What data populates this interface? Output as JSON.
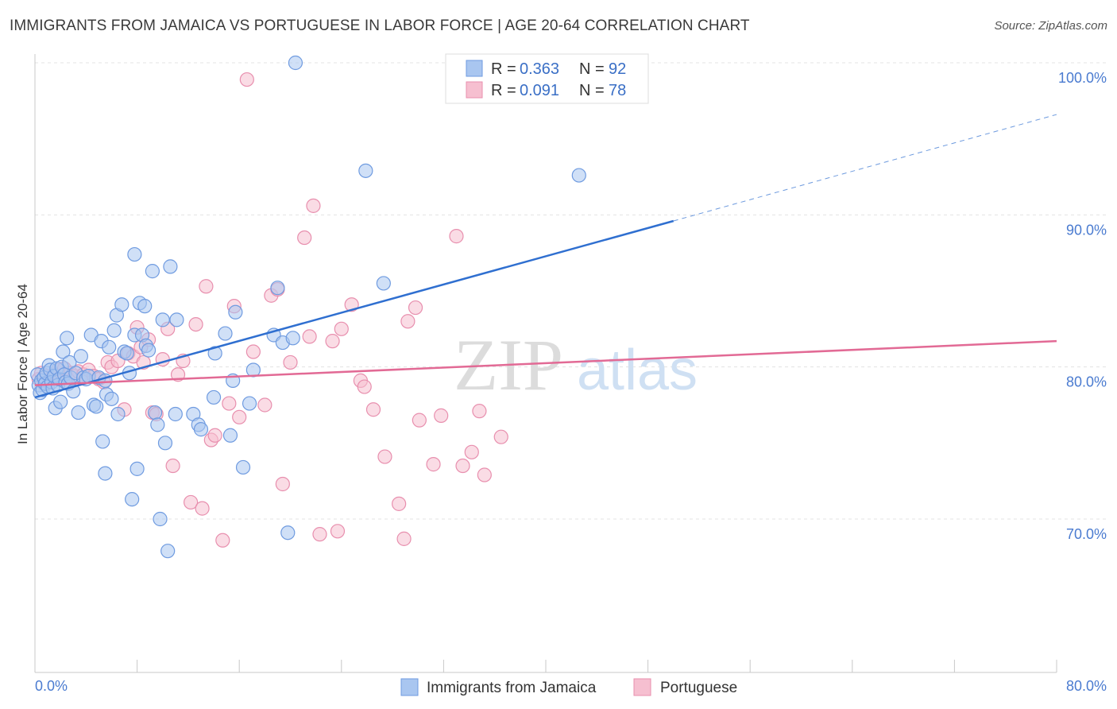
{
  "title": "IMMIGRANTS FROM JAMAICA VS PORTUGUESE IN LABOR FORCE | AGE 20-64 CORRELATION CHART",
  "source": "Source: ZipAtlas.com",
  "watermark": {
    "zip": "ZIP",
    "atlas": "atlas"
  },
  "legend": {
    "r_label": "R =",
    "n_label": "N =",
    "rows": [
      {
        "r": "0.363",
        "n": "92"
      },
      {
        "r": "0.091",
        "n": "78"
      }
    ]
  },
  "colors": {
    "jamaica_fill": "#a9c6f0",
    "jamaica_stroke": "#6f9be0",
    "jamaica_line": "#2f6fd0",
    "portuguese_fill": "#f6bfd0",
    "portuguese_stroke": "#e88fae",
    "portuguese_line": "#e26a95"
  },
  "chart_data": {
    "type": "scatter",
    "title": "IMMIGRANTS FROM JAMAICA VS PORTUGUESE IN LABOR FORCE | AGE 20-64 CORRELATION CHART",
    "xlabel": "",
    "ylabel": "In Labor Force | Age 20-64",
    "xlim": [
      0,
      80
    ],
    "ylim": [
      60,
      101
    ],
    "x_tick_labels": [
      "0.0%",
      "80.0%"
    ],
    "y_ticks": [
      70,
      80,
      90,
      100
    ],
    "y_tick_labels": [
      "70.0%",
      "80.0%",
      "90.0%",
      "100.0%"
    ],
    "series": [
      {
        "name": "Immigrants from Jamaica",
        "r": 0.363,
        "n": 92,
        "trend": {
          "x0": 0,
          "y0": 78.0,
          "x1": 50,
          "y1": 89.6,
          "dash_to_x": 80,
          "dash_to_y": 96.6
        },
        "points": [
          [
            0.2,
            79.5
          ],
          [
            0.3,
            78.8
          ],
          [
            0.4,
            78.3
          ],
          [
            0.5,
            79.1
          ],
          [
            0.6,
            78.5
          ],
          [
            0.7,
            79.3
          ],
          [
            0.8,
            78.9
          ],
          [
            0.9,
            79.6
          ],
          [
            1.0,
            78.7
          ],
          [
            1.1,
            80.1
          ],
          [
            1.2,
            79.8
          ],
          [
            1.3,
            79.0
          ],
          [
            1.4,
            78.6
          ],
          [
            1.5,
            79.4
          ],
          [
            1.6,
            77.3
          ],
          [
            1.7,
            79.9
          ],
          [
            1.8,
            78.8
          ],
          [
            1.9,
            79.2
          ],
          [
            2.0,
            77.7
          ],
          [
            2.1,
            80.0
          ],
          [
            2.2,
            81.0
          ],
          [
            2.3,
            79.5
          ],
          [
            2.4,
            79.0
          ],
          [
            2.5,
            81.9
          ],
          [
            2.6,
            78.9
          ],
          [
            2.7,
            80.3
          ],
          [
            2.8,
            79.3
          ],
          [
            3.0,
            78.4
          ],
          [
            3.2,
            79.6
          ],
          [
            3.4,
            77.0
          ],
          [
            3.6,
            80.7
          ],
          [
            3.8,
            79.3
          ],
          [
            4.0,
            79.2
          ],
          [
            4.2,
            79.4
          ],
          [
            4.4,
            82.1
          ],
          [
            4.6,
            77.5
          ],
          [
            4.8,
            77.4
          ],
          [
            5.0,
            79.3
          ],
          [
            5.2,
            81.7
          ],
          [
            5.5,
            79.1
          ],
          [
            5.3,
            75.1
          ],
          [
            5.5,
            73.0
          ],
          [
            5.6,
            78.2
          ],
          [
            5.8,
            81.3
          ],
          [
            6.0,
            77.9
          ],
          [
            6.2,
            82.4
          ],
          [
            6.4,
            83.4
          ],
          [
            6.5,
            76.9
          ],
          [
            6.8,
            84.1
          ],
          [
            7.0,
            81.0
          ],
          [
            7.2,
            80.9
          ],
          [
            7.4,
            79.6
          ],
          [
            7.6,
            71.3
          ],
          [
            7.8,
            82.1
          ],
          [
            7.8,
            87.4
          ],
          [
            8.0,
            73.3
          ],
          [
            8.2,
            84.2
          ],
          [
            8.4,
            82.1
          ],
          [
            8.6,
            84.0
          ],
          [
            8.7,
            81.4
          ],
          [
            8.9,
            81.1
          ],
          [
            9.2,
            86.3
          ],
          [
            9.4,
            77.0
          ],
          [
            9.6,
            76.2
          ],
          [
            9.8,
            70.0
          ],
          [
            10.0,
            83.1
          ],
          [
            10.2,
            75.0
          ],
          [
            10.4,
            67.9
          ],
          [
            10.6,
            86.6
          ],
          [
            11.0,
            76.9
          ],
          [
            11.1,
            83.1
          ],
          [
            12.4,
            76.9
          ],
          [
            12.8,
            76.2
          ],
          [
            13.0,
            75.9
          ],
          [
            14.0,
            78.0
          ],
          [
            14.1,
            80.9
          ],
          [
            14.9,
            82.2
          ],
          [
            15.3,
            75.5
          ],
          [
            15.5,
            79.1
          ],
          [
            15.7,
            83.6
          ],
          [
            16.3,
            73.4
          ],
          [
            16.8,
            77.6
          ],
          [
            17.1,
            79.8
          ],
          [
            18.7,
            82.1
          ],
          [
            19.0,
            85.2
          ],
          [
            19.4,
            81.6
          ],
          [
            19.8,
            69.1
          ],
          [
            20.2,
            81.9
          ],
          [
            20.4,
            100.0
          ],
          [
            25.9,
            92.9
          ],
          [
            27.3,
            85.5
          ],
          [
            42.6,
            92.6
          ]
        ]
      },
      {
        "name": "Portuguese",
        "r": 0.091,
        "n": 78,
        "trend": {
          "x0": 0,
          "y0": 78.8,
          "x1": 80,
          "y1": 81.7
        },
        "points": [
          [
            0.3,
            79.2
          ],
          [
            0.5,
            79.6
          ],
          [
            0.7,
            78.9
          ],
          [
            0.9,
            79.4
          ],
          [
            1.1,
            79.0
          ],
          [
            1.3,
            79.3
          ],
          [
            1.5,
            79.5
          ],
          [
            1.8,
            79.8
          ],
          [
            2.0,
            79.2
          ],
          [
            2.3,
            79.9
          ],
          [
            2.5,
            79.0
          ],
          [
            2.8,
            79.6
          ],
          [
            3.1,
            79.4
          ],
          [
            3.4,
            79.7
          ],
          [
            3.8,
            79.5
          ],
          [
            4.2,
            79.8
          ],
          [
            4.6,
            79.4
          ],
          [
            5.0,
            79.2
          ],
          [
            5.4,
            79.0
          ],
          [
            5.7,
            80.3
          ],
          [
            6.0,
            80.0
          ],
          [
            6.5,
            80.4
          ],
          [
            7.0,
            77.2
          ],
          [
            7.3,
            80.9
          ],
          [
            7.7,
            80.7
          ],
          [
            8.0,
            82.6
          ],
          [
            8.3,
            81.3
          ],
          [
            8.5,
            80.3
          ],
          [
            8.9,
            81.8
          ],
          [
            9.2,
            77.0
          ],
          [
            9.5,
            76.9
          ],
          [
            10.0,
            80.5
          ],
          [
            10.4,
            82.5
          ],
          [
            10.8,
            73.5
          ],
          [
            11.2,
            79.5
          ],
          [
            11.6,
            80.4
          ],
          [
            12.2,
            71.1
          ],
          [
            12.6,
            82.8
          ],
          [
            13.1,
            70.7
          ],
          [
            13.4,
            85.3
          ],
          [
            13.8,
            75.2
          ],
          [
            14.1,
            75.5
          ],
          [
            14.7,
            68.6
          ],
          [
            15.2,
            77.6
          ],
          [
            15.6,
            84.0
          ],
          [
            16.0,
            76.7
          ],
          [
            16.6,
            98.9
          ],
          [
            17.1,
            81.0
          ],
          [
            18.0,
            77.5
          ],
          [
            18.5,
            84.7
          ],
          [
            19.0,
            85.1
          ],
          [
            19.4,
            72.3
          ],
          [
            20.0,
            80.3
          ],
          [
            21.1,
            88.5
          ],
          [
            21.5,
            82.0
          ],
          [
            21.8,
            90.6
          ],
          [
            22.3,
            69.0
          ],
          [
            23.3,
            81.7
          ],
          [
            23.7,
            69.2
          ],
          [
            24.0,
            82.5
          ],
          [
            24.8,
            84.1
          ],
          [
            25.5,
            79.1
          ],
          [
            25.8,
            78.7
          ],
          [
            26.5,
            77.2
          ],
          [
            27.4,
            74.1
          ],
          [
            28.5,
            71.0
          ],
          [
            28.9,
            68.7
          ],
          [
            29.2,
            83.0
          ],
          [
            29.8,
            83.9
          ],
          [
            30.1,
            76.5
          ],
          [
            31.2,
            73.6
          ],
          [
            31.8,
            76.8
          ],
          [
            33.0,
            88.6
          ],
          [
            33.5,
            73.5
          ],
          [
            34.2,
            74.4
          ],
          [
            34.8,
            77.1
          ],
          [
            35.2,
            72.9
          ],
          [
            36.5,
            75.4
          ]
        ]
      }
    ]
  },
  "bottom_legend": [
    "Immigrants from Jamaica",
    "Portuguese"
  ]
}
